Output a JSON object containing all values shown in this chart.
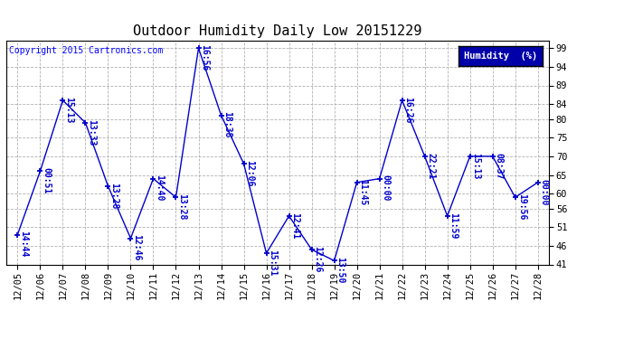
{
  "title": "Outdoor Humidity Daily Low 20151229",
  "copyright": "Copyright 2015 Cartronics.com",
  "legend_label": "Humidity  (%)",
  "x_labels": [
    "12/05",
    "12/06",
    "12/07",
    "12/08",
    "12/09",
    "12/10",
    "12/11",
    "12/12",
    "12/13",
    "12/14",
    "12/15",
    "12/16",
    "12/17",
    "12/18",
    "12/19",
    "12/20",
    "12/21",
    "12/22",
    "12/23",
    "12/24",
    "12/25",
    "12/26",
    "12/27",
    "12/28"
  ],
  "y_values": [
    49,
    66,
    85,
    79,
    62,
    48,
    64,
    59,
    99,
    81,
    68,
    44,
    54,
    45,
    42,
    63,
    64,
    85,
    70,
    54,
    70,
    70,
    59,
    63
  ],
  "point_labels": [
    "14:44",
    "00:51",
    "15:13",
    "13:33",
    "13:28",
    "12:46",
    "14:40",
    "13:28",
    "16:56",
    "18:38",
    "12:06",
    "15:31",
    "12:41",
    "12:26",
    "13:50",
    "11:45",
    "00:00",
    "16:26",
    "22:21",
    "11:59",
    "15:13",
    "08:37",
    "19:56",
    "00:00"
  ],
  "ylim": [
    41,
    101
  ],
  "yticks": [
    41,
    46,
    51,
    56,
    60,
    65,
    70,
    75,
    80,
    84,
    89,
    94,
    99
  ],
  "line_color": "#0000cc",
  "marker_color": "#0000cc",
  "bg_color": "#ffffff",
  "plot_bg": "#ffffff",
  "grid_color": "#aaaaaa",
  "title_fontsize": 11,
  "label_fontsize": 7,
  "tick_fontsize": 7.5,
  "copyright_fontsize": 7,
  "legend_bg": "#0000aa",
  "legend_fg": "#ffffff"
}
